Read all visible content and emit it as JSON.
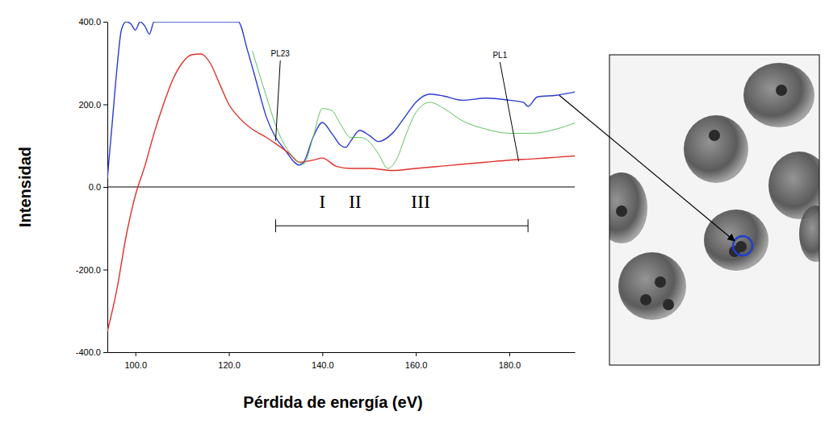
{
  "chart_data": {
    "type": "line",
    "x_label": "Pérdida de energía (eV)",
    "y_label": "Intensidad",
    "xlim": [
      94,
      194
    ],
    "ylim": [
      -400,
      400
    ],
    "xticks": [
      {
        "value": 100,
        "label": "100.0"
      },
      {
        "value": 120,
        "label": "120.0"
      },
      {
        "value": 140,
        "label": "140.0"
      },
      {
        "value": 160,
        "label": "160.0"
      },
      {
        "value": 180,
        "label": "180.0"
      }
    ],
    "yticks": [
      {
        "value": -400,
        "label": "-400.0"
      },
      {
        "value": -200,
        "label": "-200.0"
      },
      {
        "value": 0,
        "label": "0.0"
      },
      {
        "value": 200,
        "label": "200.0"
      },
      {
        "value": 400,
        "label": "400.0"
      }
    ],
    "grid": false,
    "series": [
      {
        "color": "#2b3bd1",
        "x": [
          94,
          95,
          96,
          97,
          98,
          99,
          100,
          101,
          102,
          103,
          104,
          106,
          110,
          115,
          120,
          122,
          124,
          126,
          128,
          130,
          132,
          134,
          135,
          136,
          138,
          140,
          142,
          144,
          145,
          146,
          148,
          150,
          152,
          155,
          158,
          160,
          163,
          166,
          170,
          175,
          180,
          183,
          184,
          186,
          190,
          194
        ],
        "values": [
          20,
          150,
          280,
          380,
          400,
          395,
          380,
          400,
          390,
          370,
          400,
          400,
          400,
          400,
          400,
          400,
          330,
          250,
          170,
          120,
          90,
          60,
          53,
          60,
          120,
          156,
          130,
          100,
          96,
          110,
          137,
          125,
          110,
          130,
          175,
          205,
          225,
          220,
          210,
          215,
          210,
          205,
          195,
          218,
          222,
          230
        ]
      },
      {
        "color": "#e0302a",
        "x": [
          94,
          96,
          98,
          100,
          102,
          104,
          106,
          108,
          110,
          112,
          114,
          116,
          118,
          120,
          122,
          125,
          128,
          130,
          133,
          135,
          138,
          140,
          143,
          146,
          150,
          155,
          160,
          165,
          170,
          175,
          180,
          185,
          190,
          194
        ],
        "values": [
          -350,
          -250,
          -120,
          -20,
          50,
          130,
          200,
          260,
          300,
          320,
          322,
          300,
          250,
          200,
          170,
          140,
          120,
          105,
          80,
          60,
          65,
          70,
          50,
          45,
          45,
          40,
          45,
          50,
          55,
          60,
          65,
          68,
          72,
          75
        ]
      },
      {
        "color": "#5fc35f",
        "x": [
          125,
          128,
          130,
          132,
          134,
          136,
          138,
          140,
          142,
          144,
          146,
          148,
          150,
          152,
          154,
          156,
          158,
          160,
          163,
          166,
          170,
          175,
          180,
          185,
          190,
          194
        ],
        "values": [
          330,
          220,
          150,
          100,
          70,
          55,
          120,
          190,
          185,
          150,
          120,
          120,
          110,
          80,
          45,
          70,
          130,
          180,
          205,
          190,
          160,
          140,
          130,
          130,
          140,
          155
        ]
      }
    ],
    "annotations": [
      {
        "text": "PL23",
        "x": 131,
        "y": 316,
        "arrow_x": 130,
        "arrow_y": 112
      },
      {
        "text": "PL1",
        "x": 178,
        "y": 312,
        "arrow_x": 182,
        "arrow_y": 62
      },
      {
        "text": "I",
        "x": 140,
        "y": -50
      },
      {
        "text": "II",
        "x": 147,
        "y": -50
      },
      {
        "text": "III",
        "x": 161,
        "y": -50
      }
    ],
    "range_bar": {
      "x": [
        130,
        184
      ],
      "y": -94
    }
  }
}
